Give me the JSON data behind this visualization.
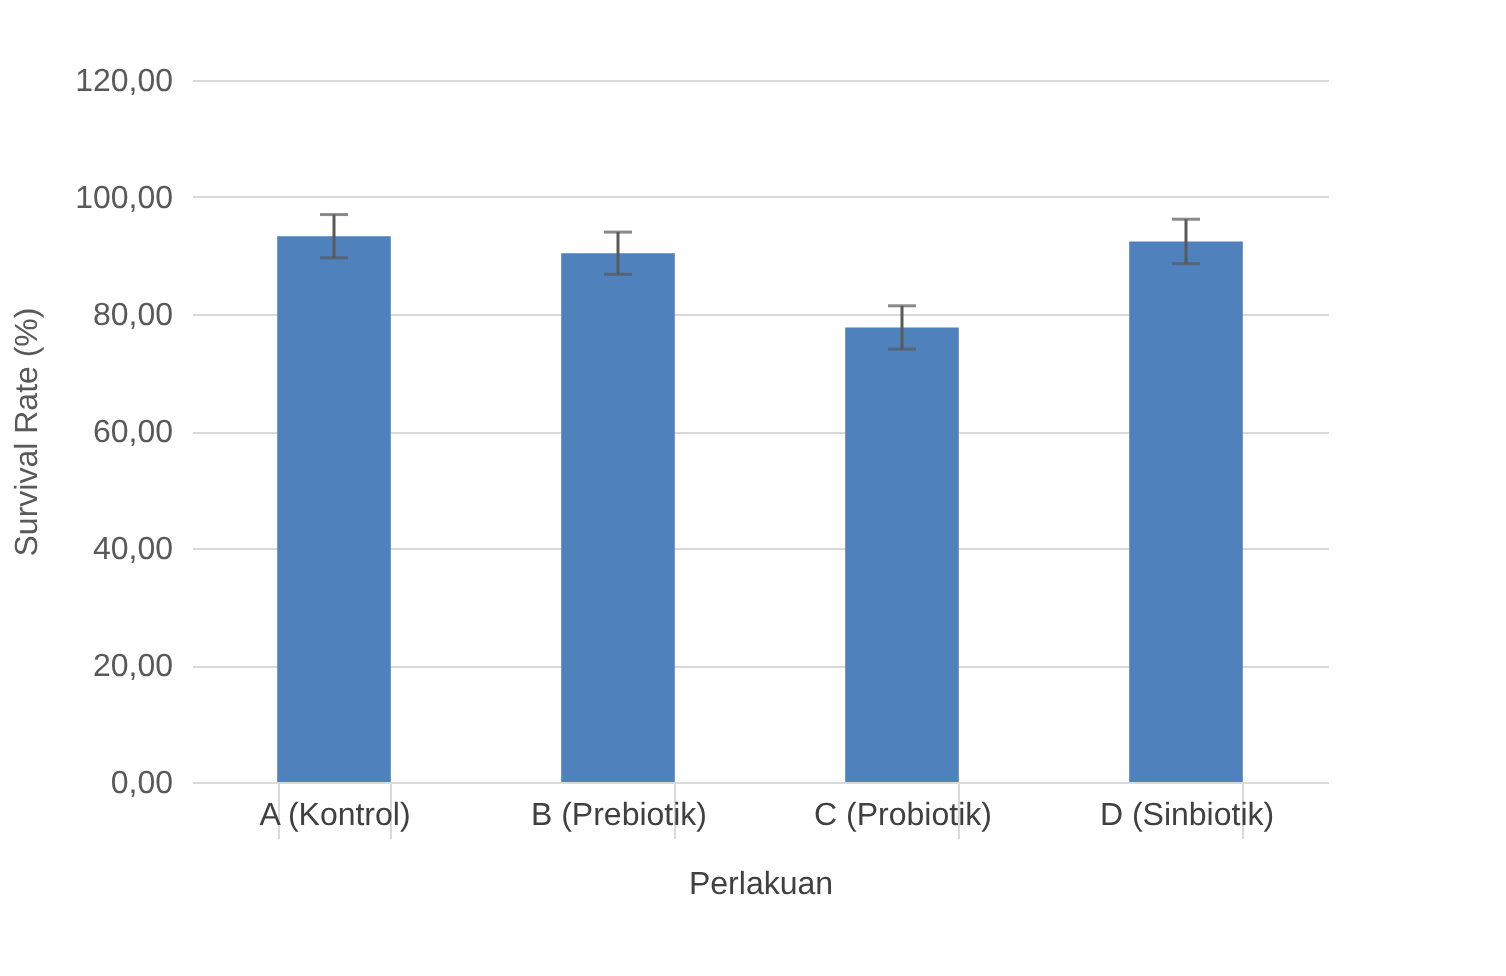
{
  "chart_data": {
    "type": "bar",
    "categories": [
      "A (Kontrol)",
      "B (Prebiotik)",
      "C (Probiotik)",
      "D (Sinbiotik)"
    ],
    "values": [
      93.3,
      90.4,
      77.7,
      92.4
    ],
    "errors": [
      3.7,
      3.6,
      3.7,
      3.8
    ],
    "color": "#4f81bd",
    "xlabel": "Perlakuan",
    "ylabel": "Survival Rate (%)",
    "ylim": [
      0,
      120
    ],
    "yticks": [
      {
        "value": 0,
        "label": "0,00"
      },
      {
        "value": 20,
        "label": "20,00"
      },
      {
        "value": 40,
        "label": "40,00"
      },
      {
        "value": 60,
        "label": "60,00"
      },
      {
        "value": 80,
        "label": "80,00"
      },
      {
        "value": 100,
        "label": "100,00"
      },
      {
        "value": 120,
        "label": "120,00"
      }
    ],
    "grid": "y"
  }
}
